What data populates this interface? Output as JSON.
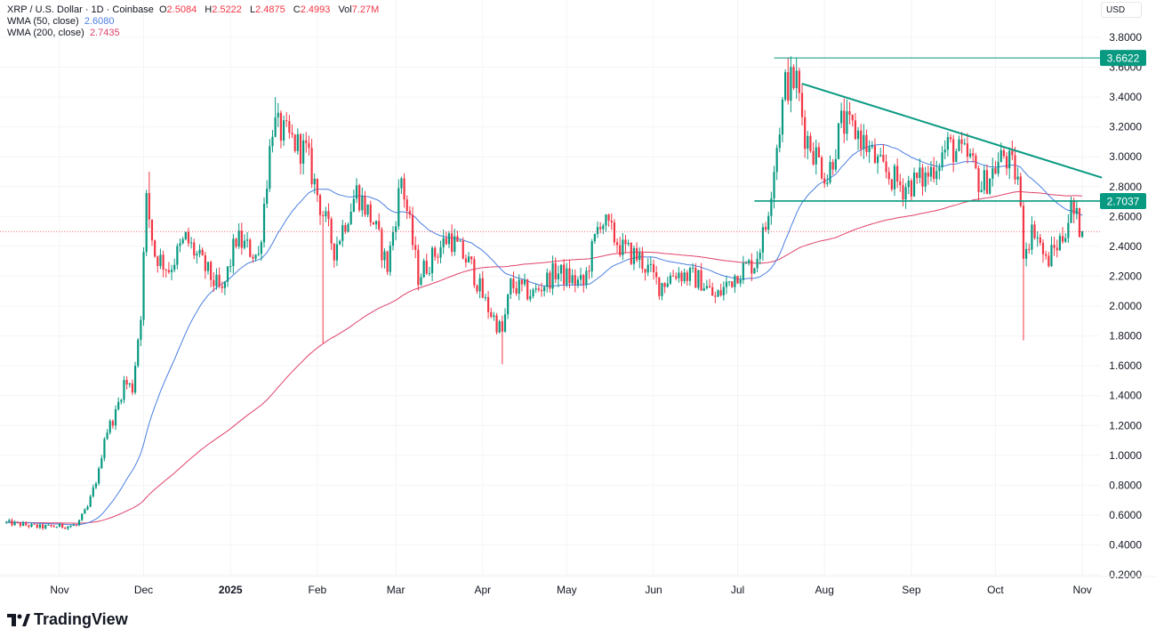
{
  "legend": {
    "symbol": "XRP / U.S. Dollar · 1D · Coinbase",
    "o_label": "O",
    "o": "2.5084",
    "h_label": "H",
    "h": "2.5222",
    "l_label": "L",
    "l": "2.4875",
    "c_label": "C",
    "c": "2.4993",
    "vol_label": "Vol",
    "vol": "7.27M",
    "wma50_label": "WMA (50, close)",
    "wma50": "2.6080",
    "wma200_label": "WMA (200, close)",
    "wma200": "2.7435"
  },
  "currency": "USD",
  "brand": "TradingView",
  "colors": {
    "up": "#089981",
    "down": "#F23645",
    "wma50": "#4a7fe0",
    "wma200": "#e0416a",
    "level": "#089981",
    "axis_text": "#131722"
  },
  "chart_data": {
    "type": "candlestick",
    "title": "XRP / U.S. Dollar · 1D · Coinbase",
    "x_unit": "days since 2024-11-01",
    "ylim": [
      0.2,
      3.8
    ],
    "y_ticks": [
      "3.8000",
      "3.6000",
      "3.4000",
      "3.2000",
      "3.0000",
      "2.8000",
      "2.6000",
      "2.4000",
      "2.2000",
      "2.0000",
      "1.8000",
      "1.6000",
      "1.4000",
      "1.2000",
      "1.0000",
      "0.8000",
      "0.6000",
      "0.4000",
      "0.2000"
    ],
    "x_ticks": [
      {
        "label": "Nov",
        "day": 0,
        "bold": false
      },
      {
        "label": "Dec",
        "day": 30,
        "bold": false
      },
      {
        "label": "2025",
        "day": 61,
        "bold": true
      },
      {
        "label": "Feb",
        "day": 92,
        "bold": false
      },
      {
        "label": "Mar",
        "day": 120,
        "bold": false
      },
      {
        "label": "Apr",
        "day": 151,
        "bold": false
      },
      {
        "label": "May",
        "day": 181,
        "bold": false
      },
      {
        "label": "Jun",
        "day": 212,
        "bold": false
      },
      {
        "label": "Jul",
        "day": 242,
        "bold": false
      },
      {
        "label": "Aug",
        "day": 273,
        "bold": false
      },
      {
        "label": "Sep",
        "day": 304,
        "bold": false
      },
      {
        "label": "Oct",
        "day": 334,
        "bold": false
      },
      {
        "label": "Nov",
        "day": 365,
        "bold": false
      }
    ],
    "approx_closes": [
      [
        -19,
        0.55
      ],
      [
        -7,
        0.52
      ],
      [
        6,
        0.53
      ],
      [
        10,
        0.65
      ],
      [
        14,
        0.89
      ],
      [
        16,
        1.13
      ],
      [
        20,
        1.28
      ],
      [
        23,
        1.49
      ],
      [
        26,
        1.45
      ],
      [
        29,
        1.96
      ],
      [
        31,
        2.7
      ],
      [
        34,
        2.35
      ],
      [
        39,
        2.25
      ],
      [
        45,
        2.45
      ],
      [
        52,
        2.25
      ],
      [
        58,
        2.08
      ],
      [
        63,
        2.45
      ],
      [
        71,
        2.33
      ],
      [
        76,
        3.22
      ],
      [
        80,
        3.15
      ],
      [
        88,
        3.03
      ],
      [
        93,
        2.68
      ],
      [
        98,
        2.38
      ],
      [
        106,
        2.77
      ],
      [
        112,
        2.56
      ],
      [
        117,
        2.26
      ],
      [
        122,
        2.86
      ],
      [
        128,
        2.2
      ],
      [
        134,
        2.35
      ],
      [
        139,
        2.47
      ],
      [
        147,
        2.26
      ],
      [
        152,
        2.02
      ],
      [
        158,
        1.82
      ],
      [
        161,
        2.14
      ],
      [
        169,
        2.08
      ],
      [
        177,
        2.23
      ],
      [
        187,
        2.14
      ],
      [
        193,
        2.59
      ],
      [
        201,
        2.38
      ],
      [
        207,
        2.32
      ],
      [
        214,
        2.14
      ],
      [
        220,
        2.23
      ],
      [
        229,
        2.17
      ],
      [
        234,
        2.05
      ],
      [
        242,
        2.23
      ],
      [
        248,
        2.29
      ],
      [
        252,
        2.53
      ],
      [
        255,
        2.95
      ],
      [
        259,
        3.48
      ],
      [
        263,
        3.51
      ],
      [
        266,
        3.16
      ],
      [
        274,
        2.86
      ],
      [
        279,
        3.22
      ],
      [
        285,
        3.16
      ],
      [
        293,
        2.92
      ],
      [
        301,
        2.8
      ],
      [
        309,
        2.86
      ],
      [
        317,
        3.07
      ],
      [
        325,
        2.98
      ],
      [
        329,
        2.8
      ],
      [
        337,
        3.01
      ],
      [
        342,
        2.86
      ],
      [
        344,
        2.38
      ],
      [
        348,
        2.53
      ],
      [
        352,
        2.29
      ],
      [
        358,
        2.47
      ],
      [
        361,
        2.65
      ],
      [
        365,
        2.4993
      ]
    ],
    "wick_extremes": [
      {
        "day": 32,
        "high": 2.9
      },
      {
        "day": 77,
        "high": 3.4
      },
      {
        "day": 94,
        "low": 1.75
      },
      {
        "day": 158,
        "low": 1.61
      },
      {
        "day": 260,
        "high": 3.66
      },
      {
        "day": 344,
        "low": 1.77
      }
    ],
    "indicators": [
      {
        "name": "WMA (50, close)",
        "period": 50,
        "last": 2.608
      },
      {
        "name": "WMA (200, close)",
        "period": 200,
        "last": 2.7435
      }
    ],
    "levels": [
      {
        "label": "3.6622",
        "value": 3.6622,
        "from_day": 255
      },
      {
        "label": "2.7037",
        "value": 2.7037,
        "from_day": 248
      }
    ],
    "trendline": {
      "from": [
        265,
        3.49
      ],
      "to": [
        372,
        2.86
      ]
    },
    "last_price": 2.4993
  }
}
